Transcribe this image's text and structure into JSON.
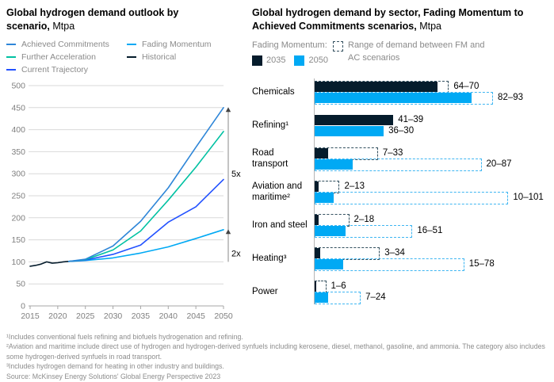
{
  "colors": {
    "achieved_commitments": "#2E86D8",
    "further_acceleration": "#00C1A2",
    "current_trajectory": "#2251FF",
    "fading_momentum": "#00A9F4",
    "historical": "#051C2C",
    "bar_2035": "#051C2C",
    "bar_2050": "#00A9F4",
    "gridline": "#D9D9D9",
    "axis": "#A6A6A6",
    "tick_text": "#7F7F7F",
    "legend_text": "#8A8A8A"
  },
  "chart_data": [
    {
      "type": "line",
      "title": "Global hydrogen demand outlook by scenario,",
      "unit": "Mtpa",
      "ylabel": "",
      "xlabel": "",
      "ylim": [
        0,
        500
      ],
      "yticks": [
        0,
        50,
        100,
        150,
        200,
        250,
        300,
        350,
        400,
        450,
        500
      ],
      "xticks": [
        2015,
        2020,
        2025,
        2030,
        2035,
        2040,
        2045,
        2050
      ],
      "grid": "horizontal",
      "legend": [
        {
          "label": "Achieved Commitments",
          "color": "#2E86D8"
        },
        {
          "label": "Further Acceleration",
          "color": "#00C1A2"
        },
        {
          "label": "Current Trajectory",
          "color": "#2251FF"
        },
        {
          "label": "Fading Momentum",
          "color": "#00A9F4"
        },
        {
          "label": "Historical",
          "color": "#051C2C"
        }
      ],
      "series": [
        {
          "name": "Historical",
          "color": "#051C2C",
          "points": [
            [
              2015,
              90
            ],
            [
              2016,
              92
            ],
            [
              2017,
              95
            ],
            [
              2018,
              100
            ],
            [
              2019,
              97
            ],
            [
              2020,
              98
            ],
            [
              2021,
              100
            ],
            [
              2022,
              101
            ]
          ]
        },
        {
          "name": "Fading Momentum",
          "color": "#00A9F4",
          "points": [
            [
              2022,
              101
            ],
            [
              2025,
              103
            ],
            [
              2030,
              109
            ],
            [
              2035,
              120
            ],
            [
              2040,
              134
            ],
            [
              2045,
              153
            ],
            [
              2050,
              173
            ]
          ]
        },
        {
          "name": "Current Trajectory",
          "color": "#2251FF",
          "points": [
            [
              2022,
              101
            ],
            [
              2025,
              104
            ],
            [
              2030,
              117
            ],
            [
              2035,
              138
            ],
            [
              2040,
              190
            ],
            [
              2045,
              225
            ],
            [
              2050,
              287
            ]
          ]
        },
        {
          "name": "Further Acceleration",
          "color": "#00C1A2",
          "points": [
            [
              2022,
              101
            ],
            [
              2025,
              105
            ],
            [
              2030,
              127
            ],
            [
              2035,
              170
            ],
            [
              2040,
              240
            ],
            [
              2045,
              315
            ],
            [
              2050,
              396
            ]
          ]
        },
        {
          "name": "Achieved Commitments",
          "color": "#2E86D8",
          "points": [
            [
              2022,
              101
            ],
            [
              2025,
              106
            ],
            [
              2030,
              136
            ],
            [
              2035,
              192
            ],
            [
              2040,
              268
            ],
            [
              2045,
              360
            ],
            [
              2050,
              450
            ]
          ]
        }
      ],
      "growth_bracket": {
        "from": 100,
        "to": 450,
        "arrow_values": [
          450,
          173
        ]
      },
      "annotations": [
        {
          "label": "5x",
          "value": 300
        },
        {
          "label": "2x",
          "value": 120
        }
      ]
    },
    {
      "type": "bar",
      "orientation": "horizontal",
      "title": "Global hydrogen demand by sector, Fading Momentum to Achieved Commitments scenarios,",
      "unit": "Mtpa",
      "legend": {
        "group_label": "Fading Momentum:",
        "items": [
          {
            "label": "2035",
            "color": "#051C2C",
            "dash_color": "#33505F"
          },
          {
            "label": "2050",
            "color": "#00A9F4",
            "dash_color": "#3FB6F2"
          }
        ],
        "range_label": "Range of demand between FM and AC scenarios"
      },
      "rows": [
        {
          "sector": "Chemicals",
          "y2035": {
            "fm": 64,
            "ac": 70,
            "label": "64–70"
          },
          "y2050": {
            "fm": 82,
            "ac": 93,
            "label": "82–93"
          }
        },
        {
          "sector": "Refining¹",
          "y2035": {
            "fm": 41,
            "ac": 39,
            "label": "41–39"
          },
          "y2050": {
            "fm": 36,
            "ac": 30,
            "label": "36–30"
          }
        },
        {
          "sector": "Road transport",
          "y2035": {
            "fm": 7,
            "ac": 33,
            "label": "7–33"
          },
          "y2050": {
            "fm": 20,
            "ac": 87,
            "label": "20–87"
          }
        },
        {
          "sector": "Aviation and maritime²",
          "y2035": {
            "fm": 2,
            "ac": 13,
            "label": "2–13"
          },
          "y2050": {
            "fm": 10,
            "ac": 101,
            "label": "10–101"
          }
        },
        {
          "sector": "Iron and steel",
          "y2035": {
            "fm": 2,
            "ac": 18,
            "label": "2–18"
          },
          "y2050": {
            "fm": 16,
            "ac": 51,
            "label": "16–51"
          }
        },
        {
          "sector": "Heating³",
          "y2035": {
            "fm": 3,
            "ac": 34,
            "label": "3–34"
          },
          "y2050": {
            "fm": 15,
            "ac": 78,
            "label": "15–78"
          }
        },
        {
          "sector": "Power",
          "y2035": {
            "fm": 1,
            "ac": 6,
            "label": "1–6"
          },
          "y2050": {
            "fm": 7,
            "ac": 24,
            "label": "7–24"
          }
        }
      ]
    }
  ],
  "footnotes": [
    "¹Includes conventional fuels refining and biofuels hydrogenation and refining.",
    "²Aviation and maritime include direct use of hydrogen and hydrogen-derived synfuels including kerosene, diesel, methanol, gasoline, and ammonia. The category also includes some hydrogen-derived synfuels in road transport.",
    "³Includes hydrogen demand for heating in other industry and buildings.",
    "Source: McKinsey Energy Solutions' Global Energy Perspective 2023"
  ]
}
